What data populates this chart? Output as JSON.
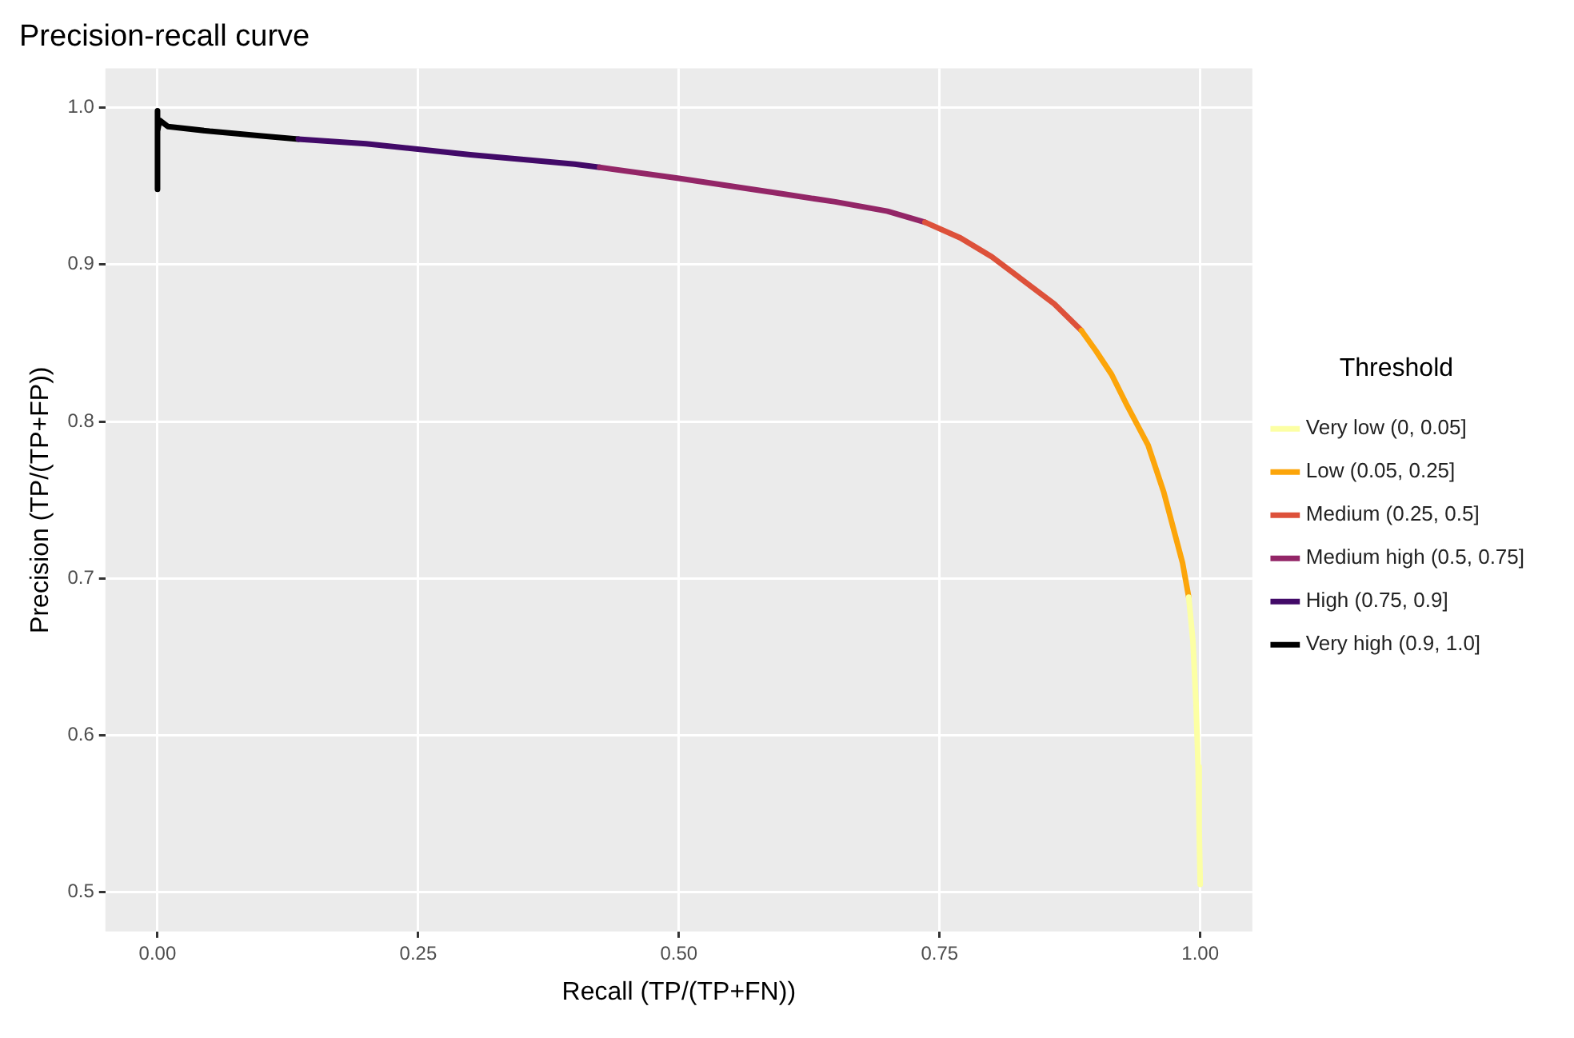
{
  "chart_data": {
    "type": "line",
    "title": "Precision-recall curve",
    "xlabel": "Recall (TP/(TP+FN))",
    "ylabel": "Precision (TP/(TP+FP))",
    "legend_title": "Threshold",
    "legend": "right",
    "grid": true,
    "marker": "none",
    "line_style": "solid",
    "xlim": [
      -0.05,
      1.05
    ],
    "ylim": [
      0.475,
      1.025
    ],
    "xticks": [
      {
        "value": 0,
        "label": "0.00"
      },
      {
        "value": 0.25,
        "label": "0.25"
      },
      {
        "value": 0.5,
        "label": "0.50"
      },
      {
        "value": 0.75,
        "label": "0.75"
      },
      {
        "value": 1,
        "label": "1.00"
      }
    ],
    "yticks": [
      {
        "value": 0.5,
        "label": "0.5"
      },
      {
        "value": 0.6,
        "label": "0.6"
      },
      {
        "value": 0.7,
        "label": "0.7"
      },
      {
        "value": 0.8,
        "label": "0.8"
      },
      {
        "value": 0.9,
        "label": "0.9"
      },
      {
        "value": 1,
        "label": "1.0"
      }
    ],
    "series": [
      {
        "name": "Very low (0, 0.05]",
        "color": "#fcffa4",
        "x": [
          0.989,
          0.993,
          0.996,
          0.998,
          0.999,
          1.0
        ],
        "values": [
          0.688,
          0.66,
          0.62,
          0.58,
          0.54,
          0.505
        ]
      },
      {
        "name": "Low (0.05, 0.25]",
        "color": "#fca50a",
        "x": [
          0.886,
          0.9,
          0.915,
          0.93,
          0.95,
          0.965,
          0.975,
          0.983,
          0.989
        ],
        "values": [
          0.858,
          0.845,
          0.83,
          0.81,
          0.785,
          0.755,
          0.73,
          0.71,
          0.688
        ]
      },
      {
        "name": "Medium (0.25, 0.5]",
        "color": "#dd513a",
        "x": [
          0.736,
          0.77,
          0.8,
          0.83,
          0.86,
          0.886
        ],
        "values": [
          0.927,
          0.917,
          0.905,
          0.89,
          0.875,
          0.858
        ]
      },
      {
        "name": "Medium high (0.5, 0.75]",
        "color": "#932667",
        "x": [
          0.424,
          0.5,
          0.6,
          0.65,
          0.7,
          0.736
        ],
        "values": [
          0.962,
          0.955,
          0.945,
          0.94,
          0.934,
          0.927
        ]
      },
      {
        "name": "High (0.75, 0.9]",
        "color": "#420a68",
        "x": [
          0.135,
          0.2,
          0.3,
          0.4,
          0.424
        ],
        "values": [
          0.98,
          0.977,
          0.97,
          0.964,
          0.962
        ]
      },
      {
        "name": "Very high (0.9, 1.0]",
        "color": "#000000",
        "x": [
          0.0,
          0.0,
          0.0,
          0.002,
          0.01,
          0.05,
          0.1,
          0.135
        ],
        "values": [
          0.948,
          0.998,
          0.985,
          0.992,
          0.988,
          0.985,
          0.982,
          0.98
        ]
      }
    ]
  }
}
